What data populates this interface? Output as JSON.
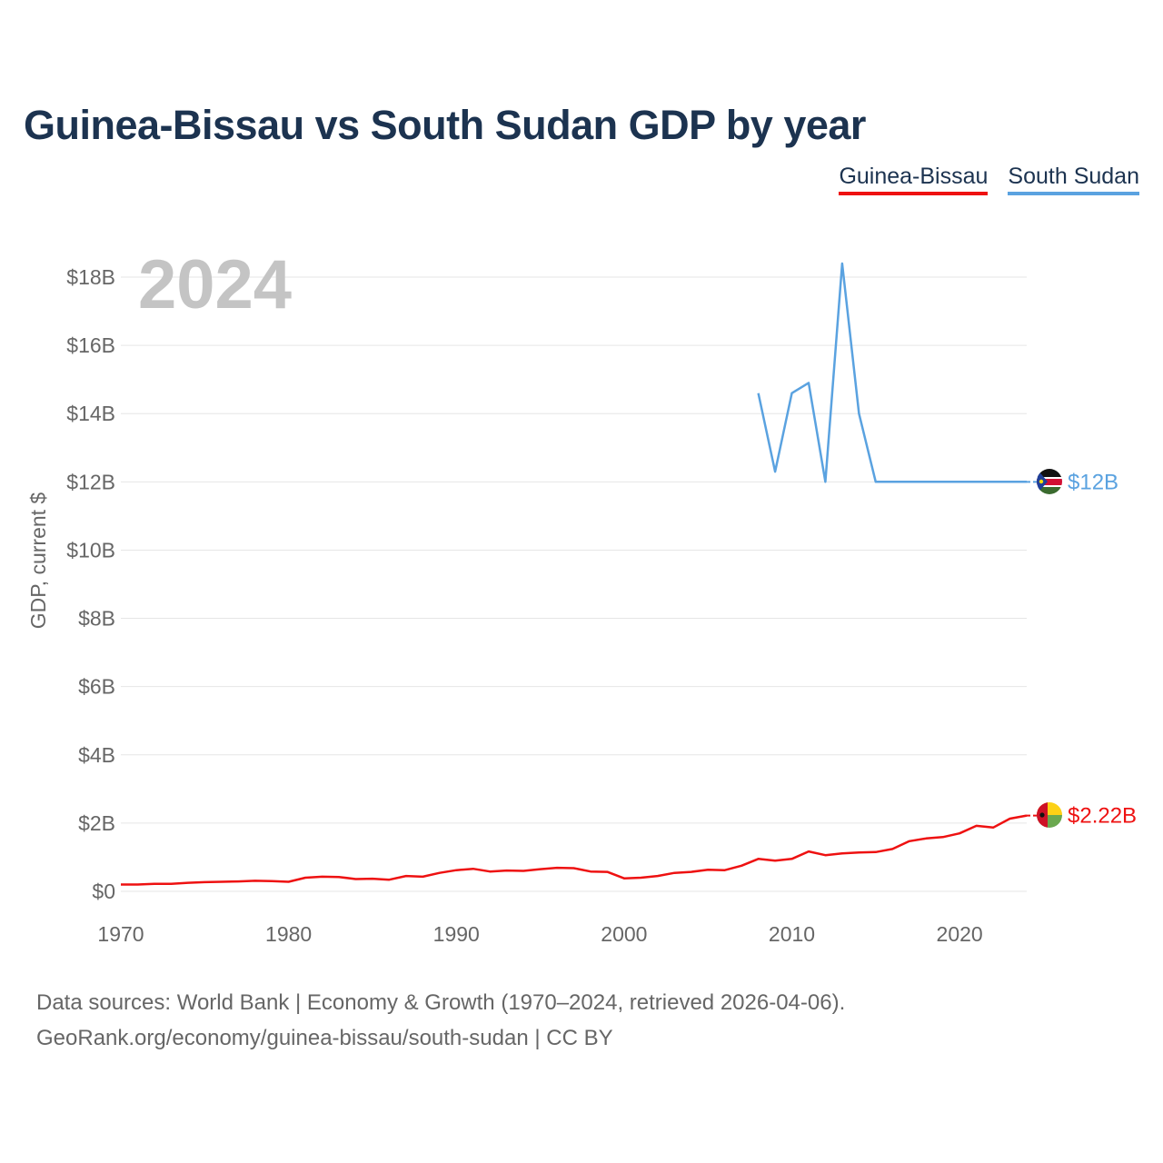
{
  "title": "Guinea-Bissau vs South Sudan GDP by year",
  "year_label": "2024",
  "legend": [
    {
      "name": "Guinea-Bissau",
      "color": "#ee1111"
    },
    {
      "name": "South Sudan",
      "color": "#5aa2e0"
    }
  ],
  "footer": {
    "line1": "Data sources: World Bank | Economy & Growth (1970–2024, retrieved 2026-04-06).",
    "line2": "GeoRank.org/economy/guinea-bissau/south-sudan | CC BY"
  },
  "chart_data": {
    "type": "line",
    "title": "Guinea-Bissau vs South Sudan GDP by year",
    "xlabel": "",
    "ylabel": "GDP, current $",
    "xlim": [
      1970,
      2024
    ],
    "ylim": [
      0,
      18
    ],
    "y_unit": "billions of current US$",
    "x_ticks": [
      1970,
      1980,
      1990,
      2000,
      2010,
      2020
    ],
    "y_ticks": [
      0,
      2,
      4,
      6,
      8,
      10,
      12,
      14,
      16,
      18
    ],
    "y_tick_labels": [
      "$0",
      "$2B",
      "$4B",
      "$6B",
      "$8B",
      "$10B",
      "$12B",
      "$14B",
      "$16B",
      "$18B"
    ],
    "grid": true,
    "legend_position": "top-right",
    "series": [
      {
        "name": "Guinea-Bissau",
        "color": "#ee1111",
        "end_label": "$2.22B",
        "x": [
          1970,
          1971,
          1972,
          1973,
          1974,
          1975,
          1976,
          1977,
          1978,
          1979,
          1980,
          1981,
          1982,
          1983,
          1984,
          1985,
          1986,
          1987,
          1988,
          1989,
          1990,
          1991,
          1992,
          1993,
          1994,
          1995,
          1996,
          1997,
          1998,
          1999,
          2000,
          2001,
          2002,
          2003,
          2004,
          2005,
          2006,
          2007,
          2008,
          2009,
          2010,
          2011,
          2012,
          2013,
          2014,
          2015,
          2016,
          2017,
          2018,
          2019,
          2020,
          2021,
          2022,
          2023,
          2024
        ],
        "values": [
          0.2,
          0.2,
          0.22,
          0.22,
          0.25,
          0.27,
          0.28,
          0.29,
          0.31,
          0.3,
          0.28,
          0.4,
          0.43,
          0.42,
          0.36,
          0.37,
          0.34,
          0.45,
          0.43,
          0.54,
          0.62,
          0.66,
          0.58,
          0.61,
          0.6,
          0.65,
          0.69,
          0.68,
          0.58,
          0.57,
          0.38,
          0.4,
          0.45,
          0.54,
          0.57,
          0.63,
          0.62,
          0.75,
          0.95,
          0.9,
          0.95,
          1.17,
          1.06,
          1.11,
          1.14,
          1.15,
          1.24,
          1.47,
          1.55,
          1.59,
          1.7,
          1.92,
          1.87,
          2.13,
          2.22
        ]
      },
      {
        "name": "South Sudan",
        "color": "#5aa2e0",
        "end_label": "$12B",
        "x": [
          2008,
          2009,
          2010,
          2011,
          2012,
          2013,
          2014,
          2015,
          2016,
          2017,
          2018,
          2019,
          2020,
          2021,
          2022,
          2023,
          2024
        ],
        "values": [
          14.6,
          12.3,
          14.6,
          14.9,
          12.0,
          18.4,
          14.0,
          12.0,
          12.0,
          12.0,
          12.0,
          12.0,
          12.0,
          12.0,
          12.0,
          12.0,
          12.0
        ]
      }
    ]
  }
}
